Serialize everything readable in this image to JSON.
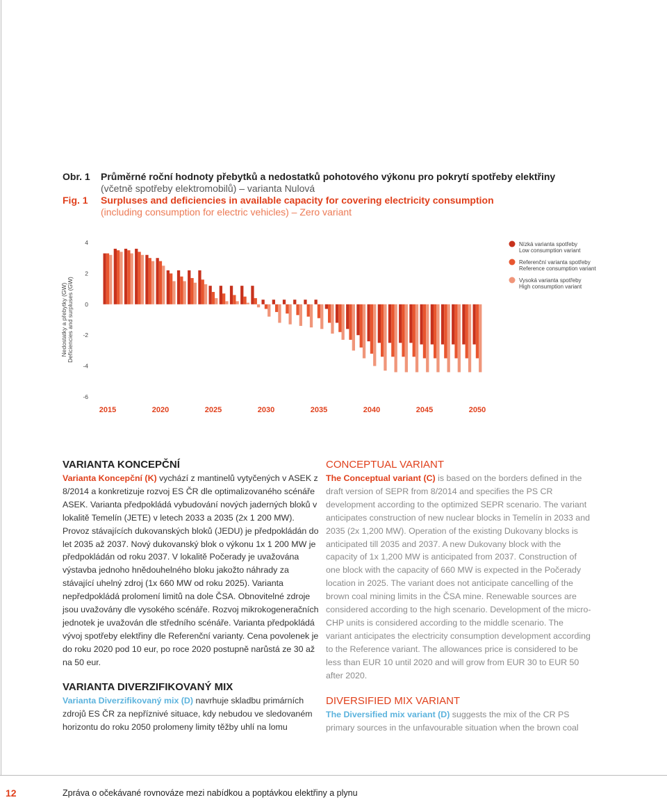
{
  "header": {
    "fig_cz": "Obr. 1",
    "title_cz": [
      "Průměrné roční hodnoty přebytků a nedostatků pohotového výkonu pro pokrytí spotřeby elektřiny",
      "(včetně spotřeby elektromobilů) – varianta Nulová"
    ],
    "fig_en": "Fig. 1",
    "title_en": [
      "Surpluses and deficiencies in available capacity for covering electricity consumption",
      "(including consumption for electric vehicles) – Zero variant"
    ]
  },
  "chart_data": {
    "type": "bar",
    "ylabel": "Nedostatky a přebytky (GW)",
    "ylabel_en": "Deficiencies and surpluses (GW)",
    "categories": [
      "2015",
      null,
      null,
      null,
      null,
      "2020",
      null,
      null,
      null,
      null,
      "2025",
      null,
      null,
      null,
      null,
      "2030",
      null,
      null,
      null,
      null,
      "2035",
      null,
      null,
      null,
      null,
      "2040",
      null,
      null,
      null,
      null,
      "2045",
      null,
      null,
      null,
      null,
      "2050"
    ],
    "series": [
      {
        "name": "Nízká varianta spotřeby",
        "name_en": "Low consumption variant",
        "color": "#c7321d",
        "values": [
          3.3,
          3.6,
          3.6,
          3.6,
          3.2,
          3.0,
          2.2,
          2.2,
          2.2,
          2.2,
          1.2,
          1.2,
          1.2,
          1.2,
          1.2,
          0.3,
          0.3,
          0.3,
          0.3,
          0.3,
          0.3,
          -0.3,
          -1.2,
          -1.6,
          -2.0,
          -2.4,
          -2.5,
          -2.5,
          -2.5,
          -2.5,
          -2.6,
          -2.6,
          -2.6,
          -2.6,
          -2.6,
          -2.6
        ]
      },
      {
        "name": "Referenční varianta spotřeby",
        "name_en": "Reference consumption variant",
        "color": "#e8562f",
        "values": [
          3.3,
          3.5,
          3.5,
          3.4,
          3.0,
          2.8,
          2.0,
          1.8,
          1.7,
          1.6,
          0.8,
          0.7,
          0.6,
          0.5,
          0.4,
          -0.3,
          -0.5,
          -0.6,
          -0.7,
          -0.8,
          -0.9,
          -1.2,
          -1.8,
          -2.3,
          -2.8,
          -3.2,
          -3.4,
          -3.4,
          -3.4,
          -3.4,
          -3.5,
          -3.5,
          -3.5,
          -3.5,
          -3.5,
          -3.5
        ]
      },
      {
        "name": "Vysoká varianta spotřeby",
        "name_en": "High consumption variant",
        "color": "#f0967a",
        "values": [
          3.2,
          3.4,
          3.3,
          3.2,
          2.8,
          2.5,
          1.5,
          1.5,
          1.4,
          1.3,
          0.4,
          0.2,
          0.2,
          0.1,
          -0.2,
          -0.8,
          -1.2,
          -1.3,
          -1.4,
          -1.5,
          -1.6,
          -1.9,
          -2.3,
          -3.0,
          -3.5,
          -4.0,
          -4.3,
          -4.4,
          -4.4,
          -4.4,
          -4.4,
          -4.4,
          -4.4,
          -4.4,
          -4.4,
          -4.4
        ]
      }
    ],
    "ylim": [
      -6,
      4
    ],
    "yticks": [
      4,
      2,
      0,
      -2,
      -4,
      -6
    ]
  },
  "left": {
    "heading1": "VARIANTA KONCEPČNÍ",
    "lead1": "Varianta Koncepční (K)",
    "text1": " vychází z mantinelů vytyčených v ASEK z 8/2014 a konkretizuje rozvoj ES ČR dle optimalizovaného scénáře ASEK. Varianta předpokládá vybudování nových jaderných bloků v lokalitě Temelín (JETE) v letech 2033 a 2035 (2x 1 200 MW). Provoz stávajících dukovanských bloků (JEDU) je předpokládán do let 2035 až 2037. Nový dukovanský blok o výkonu 1x 1 200 MW je předpokládán od roku 2037. V lokalitě Počerady je uvažována výstavba jednoho hnědouhelného bloku jakožto náhrady za stávající uhelný zdroj (1x 660 MW od roku 2025). Varianta nepředpokládá prolomení limitů na dole ČSA. Obnovitelné zdroje jsou uvažovány dle vysokého scénáře. Rozvoj mikrokogeneračních jednotek je uvažován dle středního scénáře. Varianta předpokládá vývoj spotřeby elektřiny dle Referenční varianty. Cena povolenek je do roku 2020 pod 10 eur, po roce 2020 postupně narůstá ze 30 až na 50 eur.",
    "heading2": "VARIANTA DIVERZIFIKOVANÝ MIX",
    "lead2": "Varianta Diverzifikovaný mix (D)",
    "text2": " navrhuje skladbu primárních zdrojů ES ČR za nepříznivé situace, kdy nebudou ve sledovaném horizontu do roku 2050 prolomeny limity těžby uhlí na lomu"
  },
  "right": {
    "heading1": "CONCEPTUAL VARIANT",
    "lead1": "The Conceptual variant (C)",
    "text1": " is based on the borders defined in the draft version of SEPR from 8/2014 and specifies the PS CR development according to the optimized SEPR scenario. The variant anticipates construction of new nuclear blocks in Temelín in 2033 and 2035 (2x 1,200 MW). Operation of the existing Dukovany blocks is anticipated till 2035 and 2037. A new Dukovany block with the capacity of 1x 1,200 MW is anticipated from 2037. Construction of one block with the capacity of 660 MW is expected in the Počerady location in 2025. The variant does not anticipate cancelling of the brown coal mining limits in the ČSA mine. Renewable sources are considered according to the high scenario. Development of the micro-CHP units is considered according to the middle scenario. The variant anticipates the electricity consumption development according to the Reference variant. The allowances price is considered to be less than EUR 10 until 2020 and will grow from EUR 30 to EUR 50 after 2020.",
    "heading2": "DIVERSIFIED MIX VARIANT",
    "lead2": "The Diversified mix variant (D)",
    "text2": " suggests the mix of the CR PS primary sources in the unfavourable situation when the brown coal"
  },
  "footer": {
    "page": "12",
    "text": "Zpráva o očekávané rovnováze mezi nabídkou a poptávkou elektřiny a plynu"
  }
}
